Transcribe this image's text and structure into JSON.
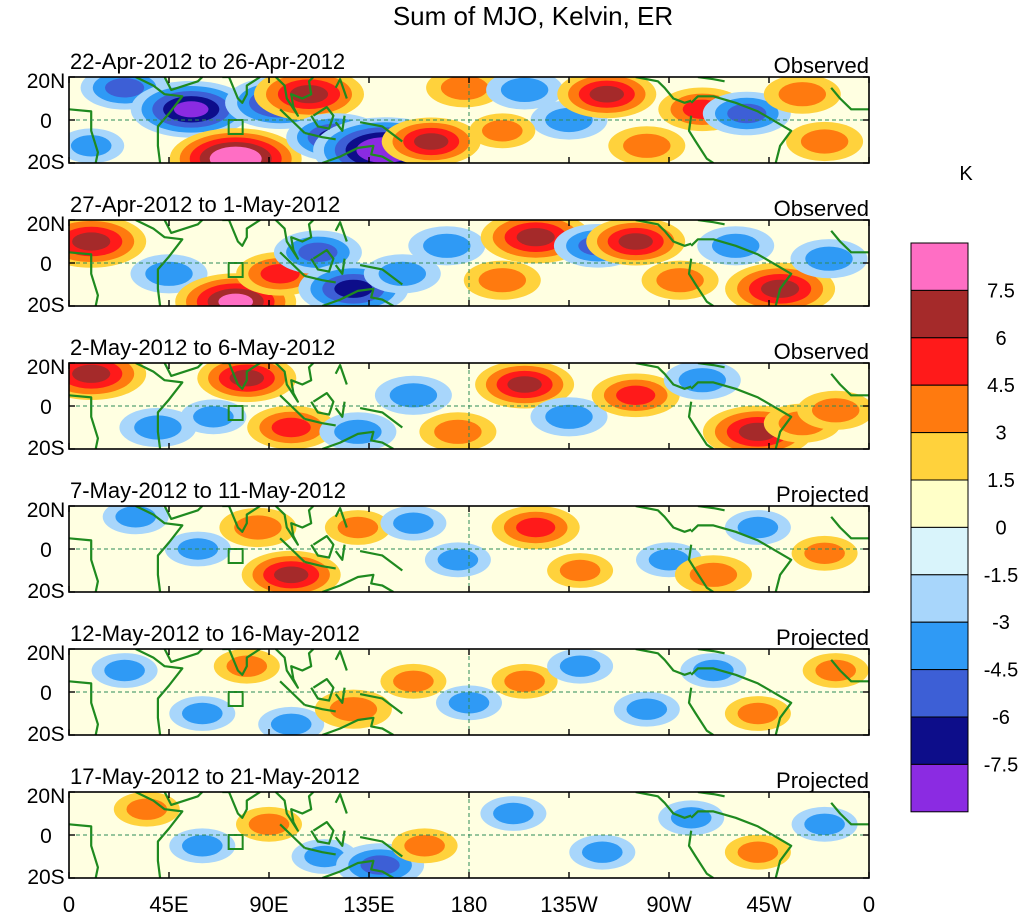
{
  "chart_data": {
    "type": "heatmap",
    "title": "Sum of MJO, Kelvin, ER",
    "units": "K",
    "x_ticks": [
      "0",
      "45E",
      "90E",
      "135E",
      "180",
      "135W",
      "90W",
      "45W",
      "0"
    ],
    "y_ticks": [
      "20N",
      "0",
      "20S"
    ],
    "longitude_range_deg": [
      0,
      360
    ],
    "latitude_range_deg": [
      -20,
      20
    ],
    "colorbar": {
      "labels": [
        "7.5",
        "6",
        "4.5",
        "3",
        "1.5",
        "0",
        "-1.5",
        "-3",
        "-4.5",
        "-6",
        "-7.5"
      ],
      "colors": [
        "#ff6ec4",
        "#a52a2a",
        "#ff1a1a",
        "#ff7a0f",
        "#ffd23c",
        "#ffffc8",
        "#d9f4fb",
        "#a8d6fb",
        "#2f9af5",
        "#3d5fd6",
        "#0d0d8a",
        "#8b2be2"
      ]
    },
    "panels": [
      {
        "period": "22-Apr-2012 to 26-Apr-2012",
        "status": "Observed",
        "blobs": [
          [
            25,
            15,
            -4
          ],
          [
            55,
            5,
            -7
          ],
          [
            75,
            -18,
            8
          ],
          [
            95,
            8,
            -6
          ],
          [
            108,
            12,
            6
          ],
          [
            120,
            -8,
            -5
          ],
          [
            142,
            -14,
            -9
          ],
          [
            163,
            -10,
            5
          ],
          [
            178,
            15,
            3
          ],
          [
            205,
            14,
            -3
          ],
          [
            225,
            0,
            -3
          ],
          [
            242,
            12,
            5
          ],
          [
            285,
            5,
            4
          ],
          [
            305,
            3,
            -4
          ],
          [
            330,
            12,
            3
          ],
          [
            340,
            -10,
            3
          ],
          [
            10,
            -12,
            -2
          ],
          [
            260,
            -12,
            3
          ],
          [
            195,
            -5,
            2
          ]
        ]
      },
      {
        "period": "27-Apr-2012 to 1-May-2012",
        "status": "Observed",
        "blobs": [
          [
            10,
            10,
            6
          ],
          [
            45,
            -5,
            -3
          ],
          [
            75,
            -18,
            7
          ],
          [
            95,
            -5,
            4
          ],
          [
            112,
            5,
            -4
          ],
          [
            128,
            -12,
            -6
          ],
          [
            150,
            -5,
            -3
          ],
          [
            170,
            8,
            -3
          ],
          [
            210,
            12,
            6
          ],
          [
            238,
            8,
            -4
          ],
          [
            255,
            10,
            5
          ],
          [
            275,
            -8,
            3
          ],
          [
            300,
            8,
            -3
          ],
          [
            320,
            -12,
            6
          ],
          [
            342,
            2,
            -3
          ],
          [
            195,
            -8,
            3
          ]
        ]
      },
      {
        "period": "2-May-2012 to 6-May-2012",
        "status": "Observed",
        "blobs": [
          [
            10,
            15,
            6
          ],
          [
            40,
            -10,
            -3
          ],
          [
            65,
            -5,
            -2
          ],
          [
            80,
            13,
            5
          ],
          [
            100,
            -10,
            4
          ],
          [
            130,
            -12,
            -3
          ],
          [
            155,
            5,
            -3
          ],
          [
            175,
            -12,
            3
          ],
          [
            205,
            10,
            5
          ],
          [
            225,
            -5,
            -3
          ],
          [
            255,
            5,
            4
          ],
          [
            285,
            12,
            -3
          ],
          [
            310,
            -12,
            6
          ],
          [
            330,
            -8,
            3
          ],
          [
            345,
            -2,
            3
          ]
        ]
      },
      {
        "period": "7-May-2012 to 11-May-2012",
        "status": "Projected",
        "blobs": [
          [
            30,
            15,
            -2
          ],
          [
            58,
            0,
            -2
          ],
          [
            85,
            10,
            3
          ],
          [
            100,
            -12,
            5
          ],
          [
            130,
            10,
            2
          ],
          [
            155,
            12,
            -2
          ],
          [
            175,
            -5,
            -2
          ],
          [
            210,
            10,
            4
          ],
          [
            230,
            -10,
            2
          ],
          [
            270,
            -5,
            -2
          ],
          [
            290,
            -12,
            3
          ],
          [
            310,
            10,
            -2
          ],
          [
            340,
            -2,
            2
          ]
        ]
      },
      {
        "period": "12-May-2012 to 16-May-2012",
        "status": "Projected",
        "blobs": [
          [
            25,
            10,
            -2
          ],
          [
            60,
            -10,
            -2
          ],
          [
            80,
            12,
            2
          ],
          [
            100,
            -15,
            -2
          ],
          [
            128,
            -8,
            3
          ],
          [
            155,
            5,
            2
          ],
          [
            180,
            -5,
            -2
          ],
          [
            205,
            5,
            2
          ],
          [
            230,
            12,
            -2
          ],
          [
            260,
            -8,
            -2
          ],
          [
            290,
            10,
            -2
          ],
          [
            310,
            -10,
            2
          ],
          [
            345,
            10,
            2
          ]
        ]
      },
      {
        "period": "17-May-2012 to 21-May-2012",
        "status": "Projected",
        "blobs": [
          [
            35,
            12,
            2
          ],
          [
            60,
            -5,
            -2
          ],
          [
            90,
            5,
            2
          ],
          [
            115,
            -10,
            -2
          ],
          [
            140,
            -14,
            -4
          ],
          [
            160,
            -5,
            2
          ],
          [
            200,
            10,
            -2
          ],
          [
            240,
            -8,
            -2
          ],
          [
            280,
            8,
            -2
          ],
          [
            310,
            -8,
            2
          ],
          [
            340,
            5,
            -2
          ]
        ]
      }
    ]
  }
}
